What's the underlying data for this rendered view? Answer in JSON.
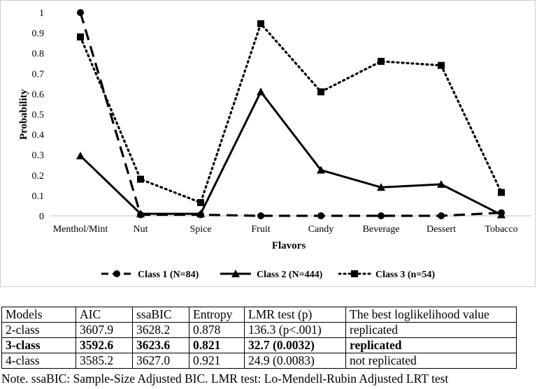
{
  "chart_data": {
    "type": "line",
    "title": "",
    "xlabel": "Flavors",
    "ylabel": "Probability",
    "categories": [
      "Menthol/Mint",
      "Nut",
      "Spice",
      "Fruit",
      "Candy",
      "Beverage",
      "Dessert",
      "Tobacco"
    ],
    "ylim": [
      0,
      1
    ],
    "yticks": [
      "0",
      "0.1",
      "0.2",
      "0.3",
      "0.4",
      "0.5",
      "0.6",
      "0.7",
      "0.8",
      "0.9",
      "1"
    ],
    "grid": false,
    "legend_position": "bottom",
    "series": [
      {
        "name": "Class 1  (N=84)",
        "line_style": "dashed",
        "marker": "circle",
        "color": "#000000",
        "values": [
          1.0,
          0.005,
          0.005,
          0.0,
          0.0,
          0.0,
          0.0,
          0.015
        ]
      },
      {
        "name": "Class 2 (N=444)",
        "line_style": "solid",
        "marker": "triangle",
        "color": "#000000",
        "values": [
          0.295,
          0.01,
          0.01,
          0.61,
          0.225,
          0.14,
          0.155,
          0.005
        ]
      },
      {
        "name": "Class 3 (n=54)",
        "line_style": "dotted",
        "marker": "square",
        "color": "#000000",
        "values": [
          0.88,
          0.18,
          0.065,
          0.945,
          0.61,
          0.76,
          0.74,
          0.115
        ]
      }
    ]
  },
  "table": {
    "headers": [
      "Models",
      "AIC",
      "ssaBIC",
      "Entropy",
      "LMR test (p)",
      "The best loglikelihood value"
    ],
    "rows": [
      [
        "2-class",
        "3607.9",
        "3628.2",
        "0.878",
        "136.3 (p<.001)",
        "replicated"
      ],
      [
        "3-class",
        "3592.6",
        "3623.6",
        "0.821",
        "32.7 (0.0032)",
        "replicated"
      ],
      [
        "4-class",
        "3585.2",
        "3627.0",
        "0.921",
        "24.9 (0.0083)",
        "not replicated"
      ]
    ],
    "bold_row": 1
  },
  "note": "Note. ssaBIC: Sample-Size Adjusted BIC. LMR test: Lo-Mendell-Rubin Adjusted LRT test"
}
